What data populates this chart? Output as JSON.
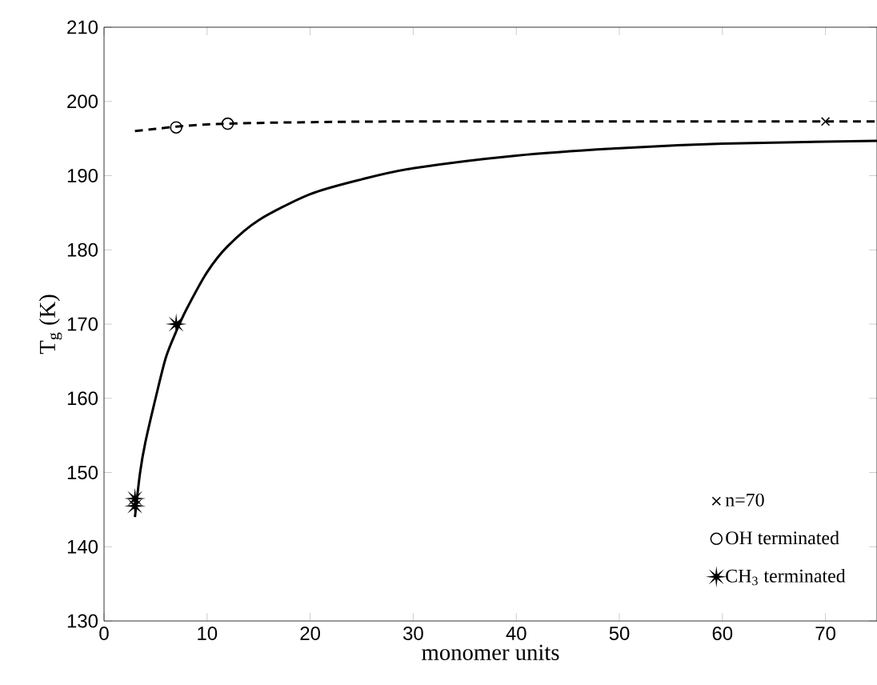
{
  "chart_data": {
    "type": "scatter",
    "xlabel": "monomer units",
    "ylabel": "T$_{g}$ (K)",
    "xlim": [
      0,
      75
    ],
    "ylim": [
      130,
      210
    ],
    "xticks": [
      0,
      10,
      20,
      30,
      40,
      50,
      60,
      70
    ],
    "yticks": [
      130,
      140,
      150,
      160,
      170,
      180,
      190,
      200,
      210
    ],
    "legend": "bottom right",
    "grid": false,
    "series": [
      {
        "type": "line",
        "line_style": "solid",
        "marker": "none",
        "color": "#000000",
        "x": [
          3,
          3.5,
          4,
          5,
          6,
          7,
          8,
          10,
          12,
          15,
          20,
          25,
          30,
          40,
          50,
          60,
          75
        ],
        "values": [
          144,
          150,
          154,
          160,
          165.5,
          169,
          172,
          177,
          180.5,
          184,
          187.5,
          189.5,
          191,
          192.7,
          193.7,
          194.3,
          194.7
        ]
      },
      {
        "type": "line",
        "line_style": "dashed",
        "marker": "none",
        "color": "#000000",
        "x": [
          3,
          5,
          7,
          10,
          15,
          20,
          30,
          75
        ],
        "values": [
          196,
          196.3,
          196.6,
          196.9,
          197.1,
          197.2,
          197.3,
          197.3
        ]
      },
      {
        "name": "n=70",
        "marker": "cross",
        "color": "#000000",
        "x": [
          70
        ],
        "values": [
          197.3
        ]
      },
      {
        "name": "OH terminated",
        "marker": "circle",
        "color": "#000000",
        "x": [
          7,
          12
        ],
        "values": [
          196.5,
          197
        ]
      },
      {
        "name": "CH$_{3}$ terminated",
        "marker": "star",
        "color": "#000000",
        "x": [
          3,
          3,
          7
        ],
        "values": [
          146.5,
          145.5,
          170
        ]
      }
    ]
  }
}
